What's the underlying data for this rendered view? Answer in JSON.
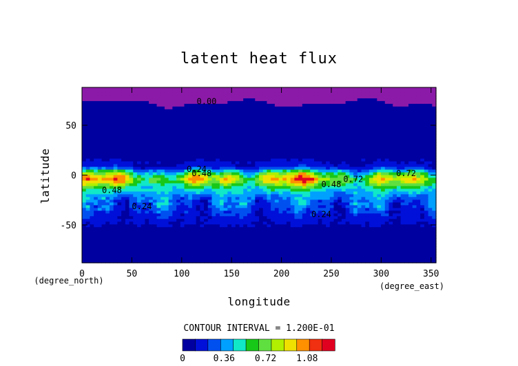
{
  "chart_data": {
    "type": "heatmap",
    "title": "latent heat flux",
    "xlabel": "longitude",
    "ylabel": "latitude",
    "x_unit": "(degree_east)",
    "y_unit": "(degree_north)",
    "xlim": [
      0,
      355
    ],
    "ylim": [
      -88,
      88
    ],
    "x_ticks": [
      0,
      50,
      100,
      150,
      200,
      250,
      300,
      350
    ],
    "y_ticks": [
      -50,
      0,
      50
    ],
    "contour_interval_text": "CONTOUR INTERVAL = 1.200E-01",
    "colorbar": {
      "levels": [
        0,
        0.12,
        0.24,
        0.36,
        0.48,
        0.6,
        0.72,
        0.84,
        0.96,
        1.08,
        1.2
      ],
      "tick_labels": [
        "0",
        "0.36",
        "0.72",
        "1.08"
      ],
      "tick_values": [
        0,
        0.36,
        0.72,
        1.08
      ],
      "colors": [
        "#0000a0",
        "#0010d8",
        "#0050f0",
        "#00a0ff",
        "#10e8c8",
        "#18c818",
        "#60e040",
        "#b0f000",
        "#f0e000",
        "#ff9000",
        "#f03010",
        "#e00020"
      ]
    },
    "contour_labels": [
      {
        "text": "0.00",
        "lon": 115,
        "lat": 71
      },
      {
        "text": "0.24",
        "lon": 105,
        "lat": 3
      },
      {
        "text": "0.48",
        "lon": 110,
        "lat": -1
      },
      {
        "text": "0.48",
        "lon": 20,
        "lat": -18
      },
      {
        "text": "0.24",
        "lon": 50,
        "lat": -34
      },
      {
        "text": "0.24",
        "lon": 230,
        "lat": -42
      },
      {
        "text": "0.48",
        "lon": 240,
        "lat": -12
      },
      {
        "text": "0.72",
        "lon": 262,
        "lat": -7
      },
      {
        "text": "0.72",
        "lon": 315,
        "lat": -1
      }
    ],
    "zonal_profile": {
      "lat": [
        88,
        72,
        70,
        60,
        40,
        20,
        10,
        6,
        4,
        0,
        -4,
        -8,
        -12,
        -16,
        -20,
        -26,
        -32,
        -38,
        -44,
        -52,
        -62,
        -72,
        -80,
        -88
      ],
      "value": [
        0,
        0,
        0.02,
        0.04,
        0.06,
        0.08,
        0.14,
        0.3,
        0.5,
        0.78,
        0.95,
        0.82,
        0.62,
        0.5,
        0.4,
        0.32,
        0.28,
        0.22,
        0.16,
        0.1,
        0.07,
        0.06,
        0.05,
        0.04
      ]
    }
  }
}
